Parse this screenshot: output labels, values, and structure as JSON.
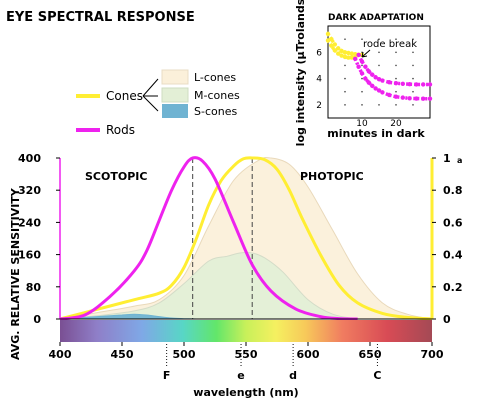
{
  "chart_data": [
    {
      "type": "area",
      "title": "EYE SPECTRAL RESPONSE",
      "xlabel": "wavelength (nm)",
      "ylabel_left": "AVG. RELATIVE SENSITIVITY",
      "xlim": [
        400,
        700
      ],
      "ylim_left": [
        0,
        400
      ],
      "ylim_right": [
        0,
        1
      ],
      "xticks": [
        "400",
        "450",
        "500",
        "550",
        "600",
        "650",
        "700"
      ],
      "yticks_left": [
        "0",
        "80",
        "160",
        "240",
        "320",
        "400"
      ],
      "yticks_right": [
        "0",
        "0.2",
        "0.4",
        "0.6",
        "0.8",
        "1"
      ],
      "right_superscript": "a",
      "region_labels": {
        "left": "SCOTOPIC",
        "right": "PHOTOPIC"
      },
      "markers": [
        {
          "label": "F",
          "x": 486
        },
        {
          "label": "e",
          "x": 546
        },
        {
          "label": "d",
          "x": 588
        },
        {
          "label": "C",
          "x": 656
        }
      ],
      "peaks": {
        "rods": 507,
        "cones": 555
      },
      "legend": {
        "cones_group": "Cones",
        "rods": "Rods",
        "cone_types": [
          "L-cones",
          "M-cones",
          "S-cones"
        ]
      },
      "colors": {
        "rods": "#ee22ee",
        "cones": "#ffee33",
        "l_cones": "#fbf0da",
        "m_cones": "#e3efd6",
        "s_cones": "#6fb3d2"
      },
      "series": [
        {
          "name": "Rods",
          "axis": "left",
          "x": [
            400,
            420,
            440,
            460,
            470,
            480,
            490,
            500,
            507,
            515,
            525,
            540,
            555,
            570,
            590,
            610,
            625,
            640
          ],
          "values": [
            0,
            10,
            55,
            120,
            170,
            245,
            320,
            378,
            400,
            392,
            348,
            240,
            135,
            70,
            25,
            6,
            1,
            0
          ]
        },
        {
          "name": "Cones",
          "axis": "right",
          "x": [
            400,
            430,
            460,
            480,
            490,
            500,
            510,
            520,
            530,
            540,
            548,
            555,
            565,
            575,
            585,
            595,
            610,
            625,
            640,
            660,
            680,
            700
          ],
          "values": [
            0,
            0.06,
            0.12,
            0.16,
            0.21,
            0.32,
            0.5,
            0.71,
            0.86,
            0.95,
            0.995,
            1,
            0.99,
            0.93,
            0.8,
            0.63,
            0.4,
            0.21,
            0.1,
            0.035,
            0.01,
            0
          ]
        },
        {
          "name": "L-cones",
          "axis": "right",
          "x": [
            400,
            430,
            460,
            480,
            500,
            520,
            540,
            560,
            570,
            585,
            600,
            620,
            640,
            660,
            680,
            700
          ],
          "values": [
            0,
            0.04,
            0.08,
            0.12,
            0.27,
            0.58,
            0.86,
            0.985,
            1,
            0.96,
            0.82,
            0.55,
            0.28,
            0.1,
            0.03,
            0
          ]
        },
        {
          "name": "M-cones",
          "axis": "right",
          "x": [
            400,
            430,
            460,
            480,
            500,
            520,
            535,
            545,
            555,
            565,
            580,
            600,
            620,
            640
          ],
          "values": [
            0,
            0.02,
            0.05,
            0.1,
            0.22,
            0.36,
            0.39,
            0.41,
            0.41,
            0.38,
            0.29,
            0.12,
            0.03,
            0
          ]
        },
        {
          "name": "S-cones",
          "axis": "right",
          "x": [
            400,
            420,
            440,
            450,
            460,
            470,
            480,
            490,
            500,
            510
          ],
          "values": [
            0,
            0.01,
            0.02,
            0.025,
            0.03,
            0.025,
            0.015,
            0.006,
            0.002,
            0
          ]
        }
      ]
    },
    {
      "type": "scatter",
      "title": "DARK ADAPTATION",
      "xlabel": "minutes in dark",
      "ylabel": "log intensity (μTrolands)",
      "xlim": [
        0,
        30
      ],
      "ylim": [
        1,
        8
      ],
      "xticks": [
        "10",
        "20"
      ],
      "yticks": [
        "2",
        "4",
        "6"
      ],
      "annotation": "rode break",
      "series": [
        {
          "name": "upper",
          "color": "#ffee33",
          "x": [
            0,
            1,
            2,
            3,
            4,
            5,
            6,
            7,
            8,
            9,
            10
          ],
          "values": [
            7.4,
            7.0,
            6.6,
            6.3,
            6.1,
            6.0,
            5.95,
            5.9,
            5.85,
            5.82,
            5.8
          ]
        },
        {
          "name": "upper",
          "color": "#ee22ee",
          "x": [
            9,
            10,
            11,
            12,
            13,
            14,
            15,
            16,
            18,
            20,
            22,
            24,
            26,
            28,
            30
          ],
          "values": [
            5.8,
            5.3,
            4.9,
            4.55,
            4.3,
            4.1,
            3.95,
            3.85,
            3.72,
            3.65,
            3.6,
            3.57,
            3.55,
            3.55,
            3.55
          ]
        },
        {
          "name": "lower",
          "color": "#ffee33",
          "x": [
            0,
            1,
            2,
            3,
            4,
            5,
            6,
            7,
            8
          ],
          "values": [
            6.9,
            6.5,
            6.15,
            5.9,
            5.75,
            5.65,
            5.6,
            5.6,
            5.6
          ]
        },
        {
          "name": "lower",
          "color": "#ee22ee",
          "x": [
            8,
            9,
            10,
            11,
            12,
            13,
            14,
            15,
            16,
            18,
            20,
            22,
            24,
            26,
            28,
            30
          ],
          "values": [
            5.5,
            4.9,
            4.4,
            4.0,
            3.7,
            3.45,
            3.25,
            3.1,
            2.95,
            2.75,
            2.62,
            2.55,
            2.5,
            2.48,
            2.47,
            2.47
          ]
        }
      ]
    }
  ]
}
